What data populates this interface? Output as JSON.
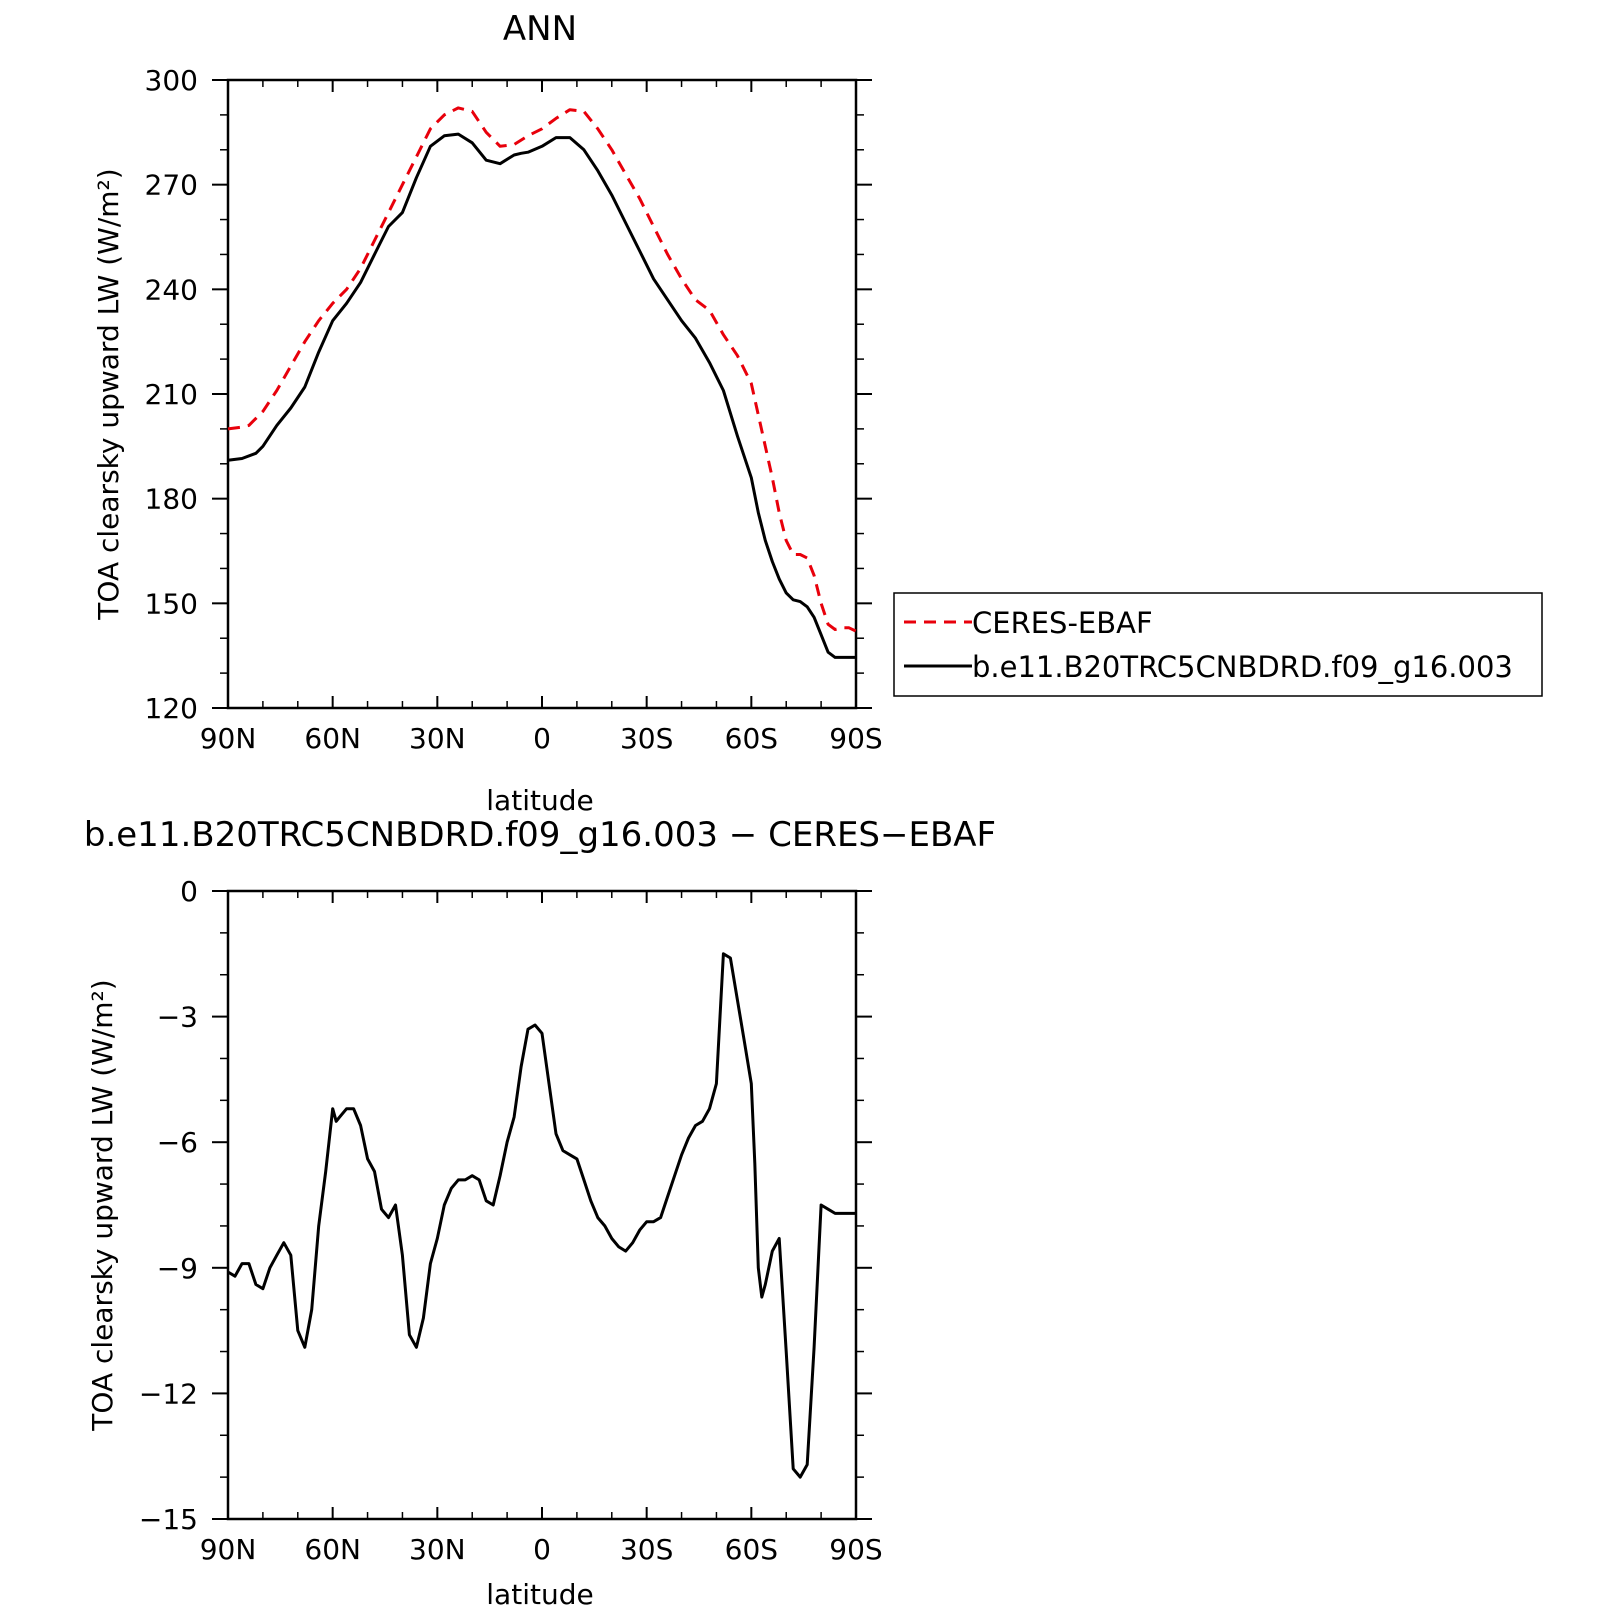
{
  "chart_data": [
    {
      "type": "line",
      "title": "ANN",
      "xlabel": "latitude",
      "ylabel": "TOA clearsky upward LW (W/m²)",
      "xlim": [
        90,
        -90
      ],
      "ylim": [
        120,
        300
      ],
      "xticks": [
        {
          "value": 90,
          "label": "90N"
        },
        {
          "value": 60,
          "label": "60N"
        },
        {
          "value": 30,
          "label": "30N"
        },
        {
          "value": 0,
          "label": "0"
        },
        {
          "value": -30,
          "label": "30S"
        },
        {
          "value": -60,
          "label": "60S"
        },
        {
          "value": -90,
          "label": "90S"
        }
      ],
      "yticks": [
        120,
        150,
        180,
        210,
        240,
        270,
        300
      ],
      "legend_position": "right",
      "series": [
        {
          "name": "CERES-EBAF",
          "color": "#e8000b",
          "dash": true,
          "x": [
            90,
            86,
            84,
            80,
            76,
            72,
            68,
            64,
            60,
            56,
            52,
            48,
            44,
            40,
            36,
            32,
            28,
            24,
            20,
            16,
            12,
            8,
            4,
            0,
            -4,
            -8,
            -12,
            -16,
            -20,
            -24,
            -28,
            -32,
            -36,
            -40,
            -44,
            -48,
            -52,
            -56,
            -60,
            -62,
            -64,
            -66,
            -68,
            -70,
            -72,
            -74,
            -76,
            -78,
            -80,
            -82,
            -84,
            -86,
            -88,
            -90
          ],
          "y": [
            200,
            200.5,
            201,
            205,
            211,
            218,
            225,
            231,
            236,
            240,
            246,
            254,
            262,
            270,
            278,
            286,
            290,
            292,
            291,
            285,
            281,
            281.5,
            284,
            286,
            289,
            291.5,
            291,
            286,
            280,
            273,
            266,
            258,
            250,
            243,
            237,
            234,
            227,
            221,
            213,
            204,
            195,
            186,
            176,
            168,
            164,
            164,
            163,
            158,
            150,
            144,
            142.5,
            143,
            143,
            142
          ]
        },
        {
          "name": "b.e11.B20TRC5CNBDRD.f09_g16.003",
          "color": "#000000",
          "dash": false,
          "x": [
            90,
            86,
            82,
            80,
            76,
            72,
            68,
            64,
            60,
            56,
            52,
            48,
            44,
            40,
            36,
            32,
            28,
            24,
            20,
            16,
            12,
            8,
            6,
            4,
            0,
            -4,
            -8,
            -12,
            -16,
            -20,
            -24,
            -28,
            -32,
            -36,
            -40,
            -44,
            -48,
            -52,
            -56,
            -60,
            -62,
            -64,
            -66,
            -68,
            -70,
            -72,
            -74,
            -76,
            -78,
            -80,
            -82,
            -84,
            -86,
            -88,
            -90
          ],
          "y": [
            191,
            191.5,
            193,
            195,
            201,
            206,
            212,
            222,
            231,
            236,
            242,
            250,
            258,
            262,
            272,
            281,
            284,
            284.5,
            282,
            277,
            276,
            278.5,
            279,
            279.3,
            281,
            283.5,
            283.5,
            280,
            274,
            267,
            259,
            251,
            243,
            237,
            231,
            226,
            219,
            211,
            198,
            186,
            176,
            168,
            162,
            157,
            153,
            151,
            150.5,
            149,
            146,
            141,
            136,
            134.5,
            134.5,
            134.5,
            134.5
          ]
        }
      ],
      "legend_visible_series": [
        0,
        1
      ]
    },
    {
      "type": "line",
      "title": "b.e11.B20TRC5CNBDRD.f09_g16.003 − CERES−EBAF",
      "xlabel": "latitude",
      "ylabel": "TOA clearsky upward LW (W/m²)",
      "xlim": [
        90,
        -90
      ],
      "ylim": [
        -15,
        0
      ],
      "xticks": [
        {
          "value": 90,
          "label": "90N"
        },
        {
          "value": 60,
          "label": "60N"
        },
        {
          "value": 30,
          "label": "30N"
        },
        {
          "value": 0,
          "label": "0"
        },
        {
          "value": -30,
          "label": "30S"
        },
        {
          "value": -60,
          "label": "60S"
        },
        {
          "value": -90,
          "label": "90S"
        }
      ],
      "yticks": [
        {
          "value": 0,
          "label": "0"
        },
        {
          "value": -3,
          "label": "−3"
        },
        {
          "value": -6,
          "label": "−6"
        },
        {
          "value": -9,
          "label": "−9"
        },
        {
          "value": -12,
          "label": "−12"
        },
        {
          "value": -15,
          "label": "−15"
        }
      ],
      "series": [
        {
          "color": "#000000",
          "x": [
            90,
            88,
            86,
            84,
            82,
            80,
            78,
            76,
            74,
            72,
            70,
            68,
            66,
            64,
            62,
            60,
            59,
            58,
            56,
            54,
            52,
            50,
            48,
            46,
            44,
            42,
            40,
            38,
            36,
            34,
            32,
            30,
            28,
            26,
            24,
            22,
            20,
            18,
            16,
            14,
            12,
            10,
            8,
            6,
            4,
            2,
            0,
            -2,
            -4,
            -6,
            -8,
            -10,
            -12,
            -14,
            -16,
            -18,
            -20,
            -22,
            -24,
            -26,
            -28,
            -30,
            -32,
            -34,
            -36,
            -38,
            -40,
            -42,
            -44,
            -46,
            -48,
            -50,
            -52,
            -54,
            -56,
            -58,
            -60,
            -61,
            -62,
            -63,
            -64,
            -66,
            -68,
            -70,
            -72,
            -74,
            -76,
            -78,
            -80,
            -82,
            -84,
            -86,
            -88,
            -89,
            -90
          ],
          "y": [
            -9.1,
            -9.2,
            -8.9,
            -8.9,
            -9.4,
            -9.5,
            -9.0,
            -8.7,
            -8.4,
            -8.7,
            -10.5,
            -10.9,
            -10.0,
            -8.0,
            -6.7,
            -5.2,
            -5.5,
            -5.4,
            -5.2,
            -5.2,
            -5.6,
            -6.4,
            -6.7,
            -7.6,
            -7.8,
            -7.5,
            -8.7,
            -10.6,
            -10.9,
            -10.2,
            -8.9,
            -8.3,
            -7.5,
            -7.1,
            -6.9,
            -6.9,
            -6.8,
            -6.9,
            -7.4,
            -7.5,
            -6.8,
            -6.0,
            -5.4,
            -4.2,
            -3.3,
            -3.2,
            -3.4,
            -4.6,
            -5.8,
            -6.2,
            -6.3,
            -6.4,
            -6.9,
            -7.4,
            -7.8,
            -8.0,
            -8.3,
            -8.5,
            -8.6,
            -8.4,
            -8.1,
            -7.9,
            -7.9,
            -7.8,
            -7.3,
            -6.8,
            -6.3,
            -5.9,
            -5.6,
            -5.5,
            -5.2,
            -4.6,
            -1.5,
            -1.6,
            -2.6,
            -3.6,
            -4.6,
            -6.5,
            -9.0,
            -9.7,
            -9.4,
            -8.6,
            -8.3,
            -11.0,
            -13.8,
            -14.0,
            -13.7,
            -10.9,
            -7.5,
            -7.6,
            -7.7,
            -7.7,
            -7.7,
            -7.7,
            -7.7
          ]
        }
      ]
    }
  ]
}
